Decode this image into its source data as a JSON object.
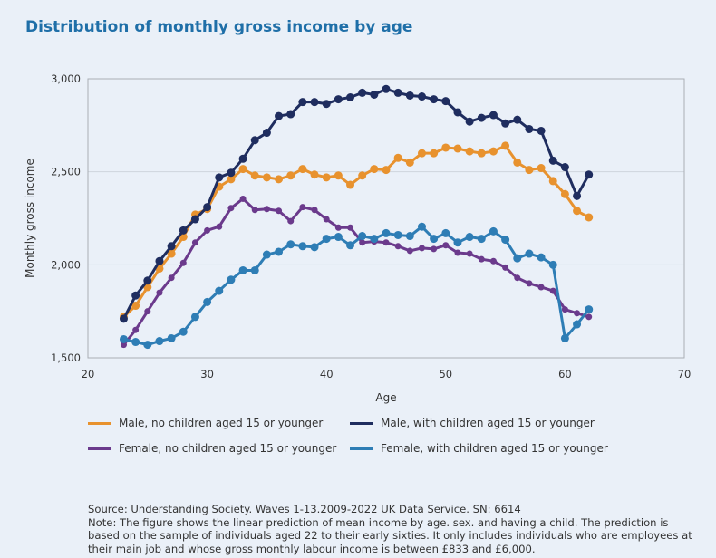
{
  "title": "Distribution of monthly gross income by age",
  "chart_data": {
    "type": "line",
    "title": "Distribution of monthly gross income by age",
    "xlabel": "Age",
    "ylabel": "Monthly gross income",
    "xlim": [
      20,
      70
    ],
    "ylim": [
      1500,
      3000
    ],
    "xticks": [
      "20",
      "30",
      "40",
      "50",
      "60",
      "70"
    ],
    "yticks": [
      "1,500",
      "2,000",
      "2,500",
      "3,000"
    ],
    "grid": "horizontal",
    "legend": "bottom",
    "x": [
      23,
      24,
      25,
      26,
      27,
      28,
      29,
      30,
      31,
      32,
      33,
      34,
      35,
      36,
      37,
      38,
      39,
      40,
      41,
      42,
      43,
      44,
      45,
      46,
      47,
      48,
      49,
      50,
      51,
      52,
      53,
      54,
      55,
      56,
      57,
      58,
      59,
      60,
      61,
      62
    ],
    "series": [
      {
        "name": "Male, no children aged 15 or younger",
        "color": "#e8922e",
        "values": [
          1720,
          1780,
          1880,
          1980,
          2060,
          2150,
          2270,
          2300,
          2420,
          2460,
          2515,
          2480,
          2470,
          2460,
          2480,
          2515,
          2485,
          2470,
          2480,
          2430,
          2480,
          2515,
          2510,
          2575,
          2550,
          2600,
          2600,
          2630,
          2625,
          2610,
          2600,
          2610,
          2640,
          2550,
          2510,
          2520,
          2450,
          2380,
          2290,
          2255
        ]
      },
      {
        "name": "Male, with children aged 15 or younger",
        "color": "#1f2d5f",
        "values": [
          1710,
          1835,
          1915,
          2020,
          2100,
          2185,
          2245,
          2310,
          2470,
          2495,
          2570,
          2670,
          2710,
          2800,
          2810,
          2875,
          2875,
          2865,
          2890,
          2900,
          2925,
          2915,
          2945,
          2925,
          2910,
          2905,
          2890,
          2880,
          2820,
          2770,
          2790,
          2805,
          2760,
          2780,
          2730,
          2720,
          2560,
          2525,
          2370,
          2485
        ]
      },
      {
        "name": "Female, no children aged 15 or younger",
        "color": "#6b3a8c",
        "values": [
          1570,
          1650,
          1750,
          1850,
          1930,
          2010,
          2120,
          2185,
          2205,
          2305,
          2355,
          2295,
          2300,
          2290,
          2235,
          2310,
          2295,
          2245,
          2200,
          2200,
          2120,
          2125,
          2120,
          2100,
          2075,
          2090,
          2085,
          2105,
          2065,
          2060,
          2030,
          2020,
          1985,
          1930,
          1900,
          1880,
          1860,
          1760,
          1740,
          1720
        ]
      },
      {
        "name": "Female, with children aged 15 or younger",
        "color": "#2e7db5",
        "values": [
          1600,
          1585,
          1570,
          1590,
          1605,
          1640,
          1720,
          1800,
          1860,
          1920,
          1970,
          1970,
          2055,
          2070,
          2110,
          2100,
          2095,
          2140,
          2150,
          2105,
          2155,
          2140,
          2170,
          2160,
          2155,
          2205,
          2140,
          2170,
          2120,
          2150,
          2140,
          2180,
          2135,
          2035,
          2060,
          2040,
          2000,
          1605,
          1680,
          1760
        ]
      }
    ]
  },
  "notes": {
    "source": "Source: Understanding Society. Waves 1-13.2009-2022 UK Data Service. SN: 6614",
    "note": "Note: The figure shows the linear prediction of mean income by age. sex. and having a child. The prediction is based on the sample of individuals aged 22 to their early sixties. It only includes individuals who are employees at their main job and whose gross monthly labour income is between £833 and £6,000."
  }
}
